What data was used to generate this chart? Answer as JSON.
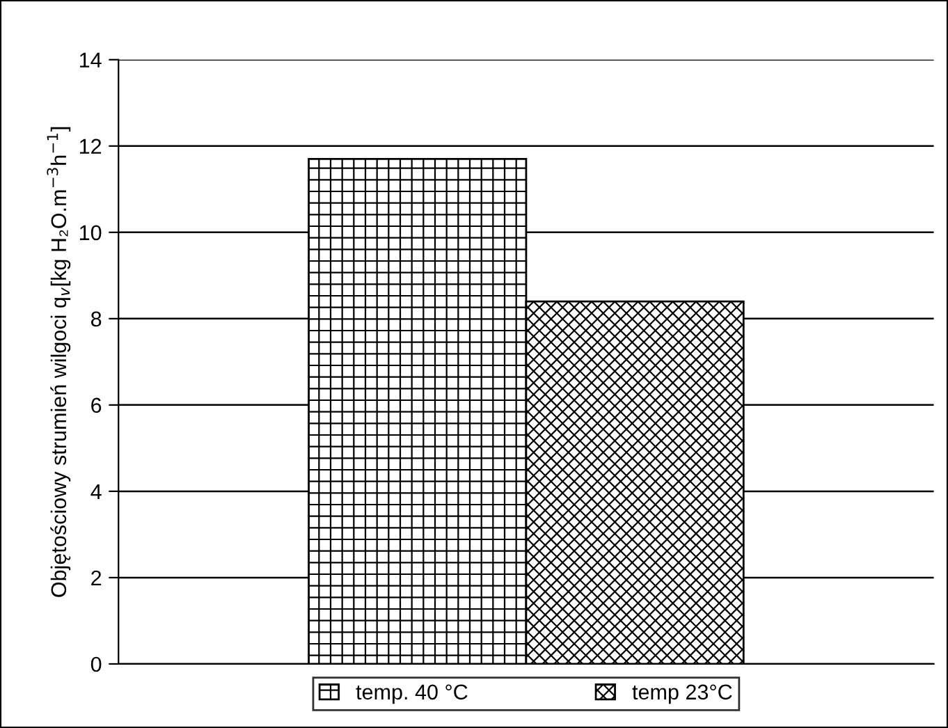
{
  "chart_data": {
    "type": "bar",
    "ylabel": "Objętościowy strumień wilgoci q$_{v}$[kg H₂O.m$^{−3}$h$^{−1}$]",
    "categories": [
      null
    ],
    "series": [
      {
        "name": "temp. 40 °C",
        "color": "#000000",
        "values": [
          11.7
        ]
      },
      {
        "name": "temp 23°C",
        "color": "#000000",
        "values": [
          8.4
        ]
      }
    ],
    "ylim": [
      0,
      14
    ],
    "yticks": [
      0,
      2,
      4,
      6,
      8,
      10,
      12,
      14
    ],
    "grid": "y",
    "legend": "bottom"
  }
}
